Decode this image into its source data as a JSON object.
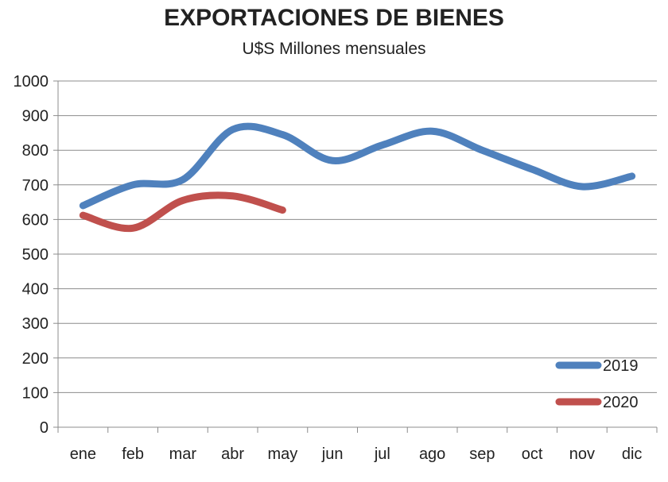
{
  "chart_data": {
    "type": "line",
    "title": "EXPORTACIONES DE BIENES",
    "subtitle": "U$S Millones  mensuales",
    "xlabel": "",
    "ylabel": "",
    "categories": [
      "ene",
      "feb",
      "mar",
      "abr",
      "may",
      "jun",
      "jul",
      "ago",
      "sep",
      "oct",
      "nov",
      "dic"
    ],
    "ylim": [
      0,
      1000
    ],
    "yticks": [
      0,
      100,
      200,
      300,
      400,
      500,
      600,
      700,
      800,
      900,
      1000
    ],
    "grid": true,
    "legend": "bottom-right",
    "series": [
      {
        "name": "2019",
        "color": "#4f81bd",
        "values": [
          640,
          700,
          715,
          860,
          845,
          770,
          815,
          855,
          800,
          745,
          695,
          725
        ]
      },
      {
        "name": "2020",
        "color": "#c0504d",
        "values": [
          612,
          575,
          655,
          668,
          627,
          null,
          null,
          null,
          null,
          null,
          null,
          null
        ]
      }
    ]
  }
}
